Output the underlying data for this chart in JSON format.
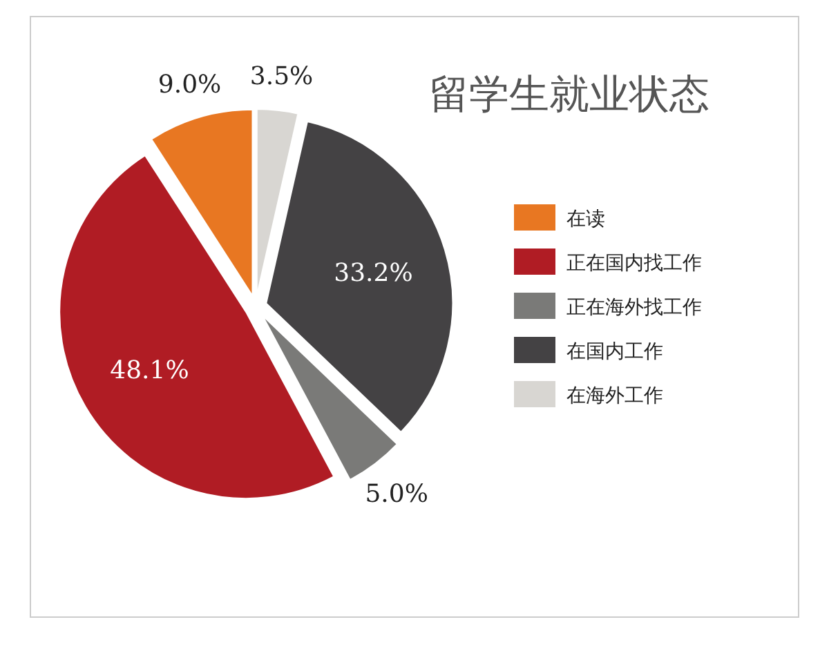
{
  "chart_data": {
    "type": "pie",
    "title": "留学生就业状态",
    "categories": [
      "在读",
      "正在国内找工作",
      "正在海外找工作",
      "在国内工作",
      "在海外工作"
    ],
    "values": [
      9.0,
      48.1,
      5.0,
      33.2,
      3.5
    ],
    "colors": [
      "#e87722",
      "#b01c24",
      "#7a7a78",
      "#444244",
      "#d8d6d2"
    ],
    "value_labels": [
      "9.0%",
      "48.1%",
      "5.0%",
      "33.2%",
      "3.5%"
    ],
    "legend": "right"
  }
}
